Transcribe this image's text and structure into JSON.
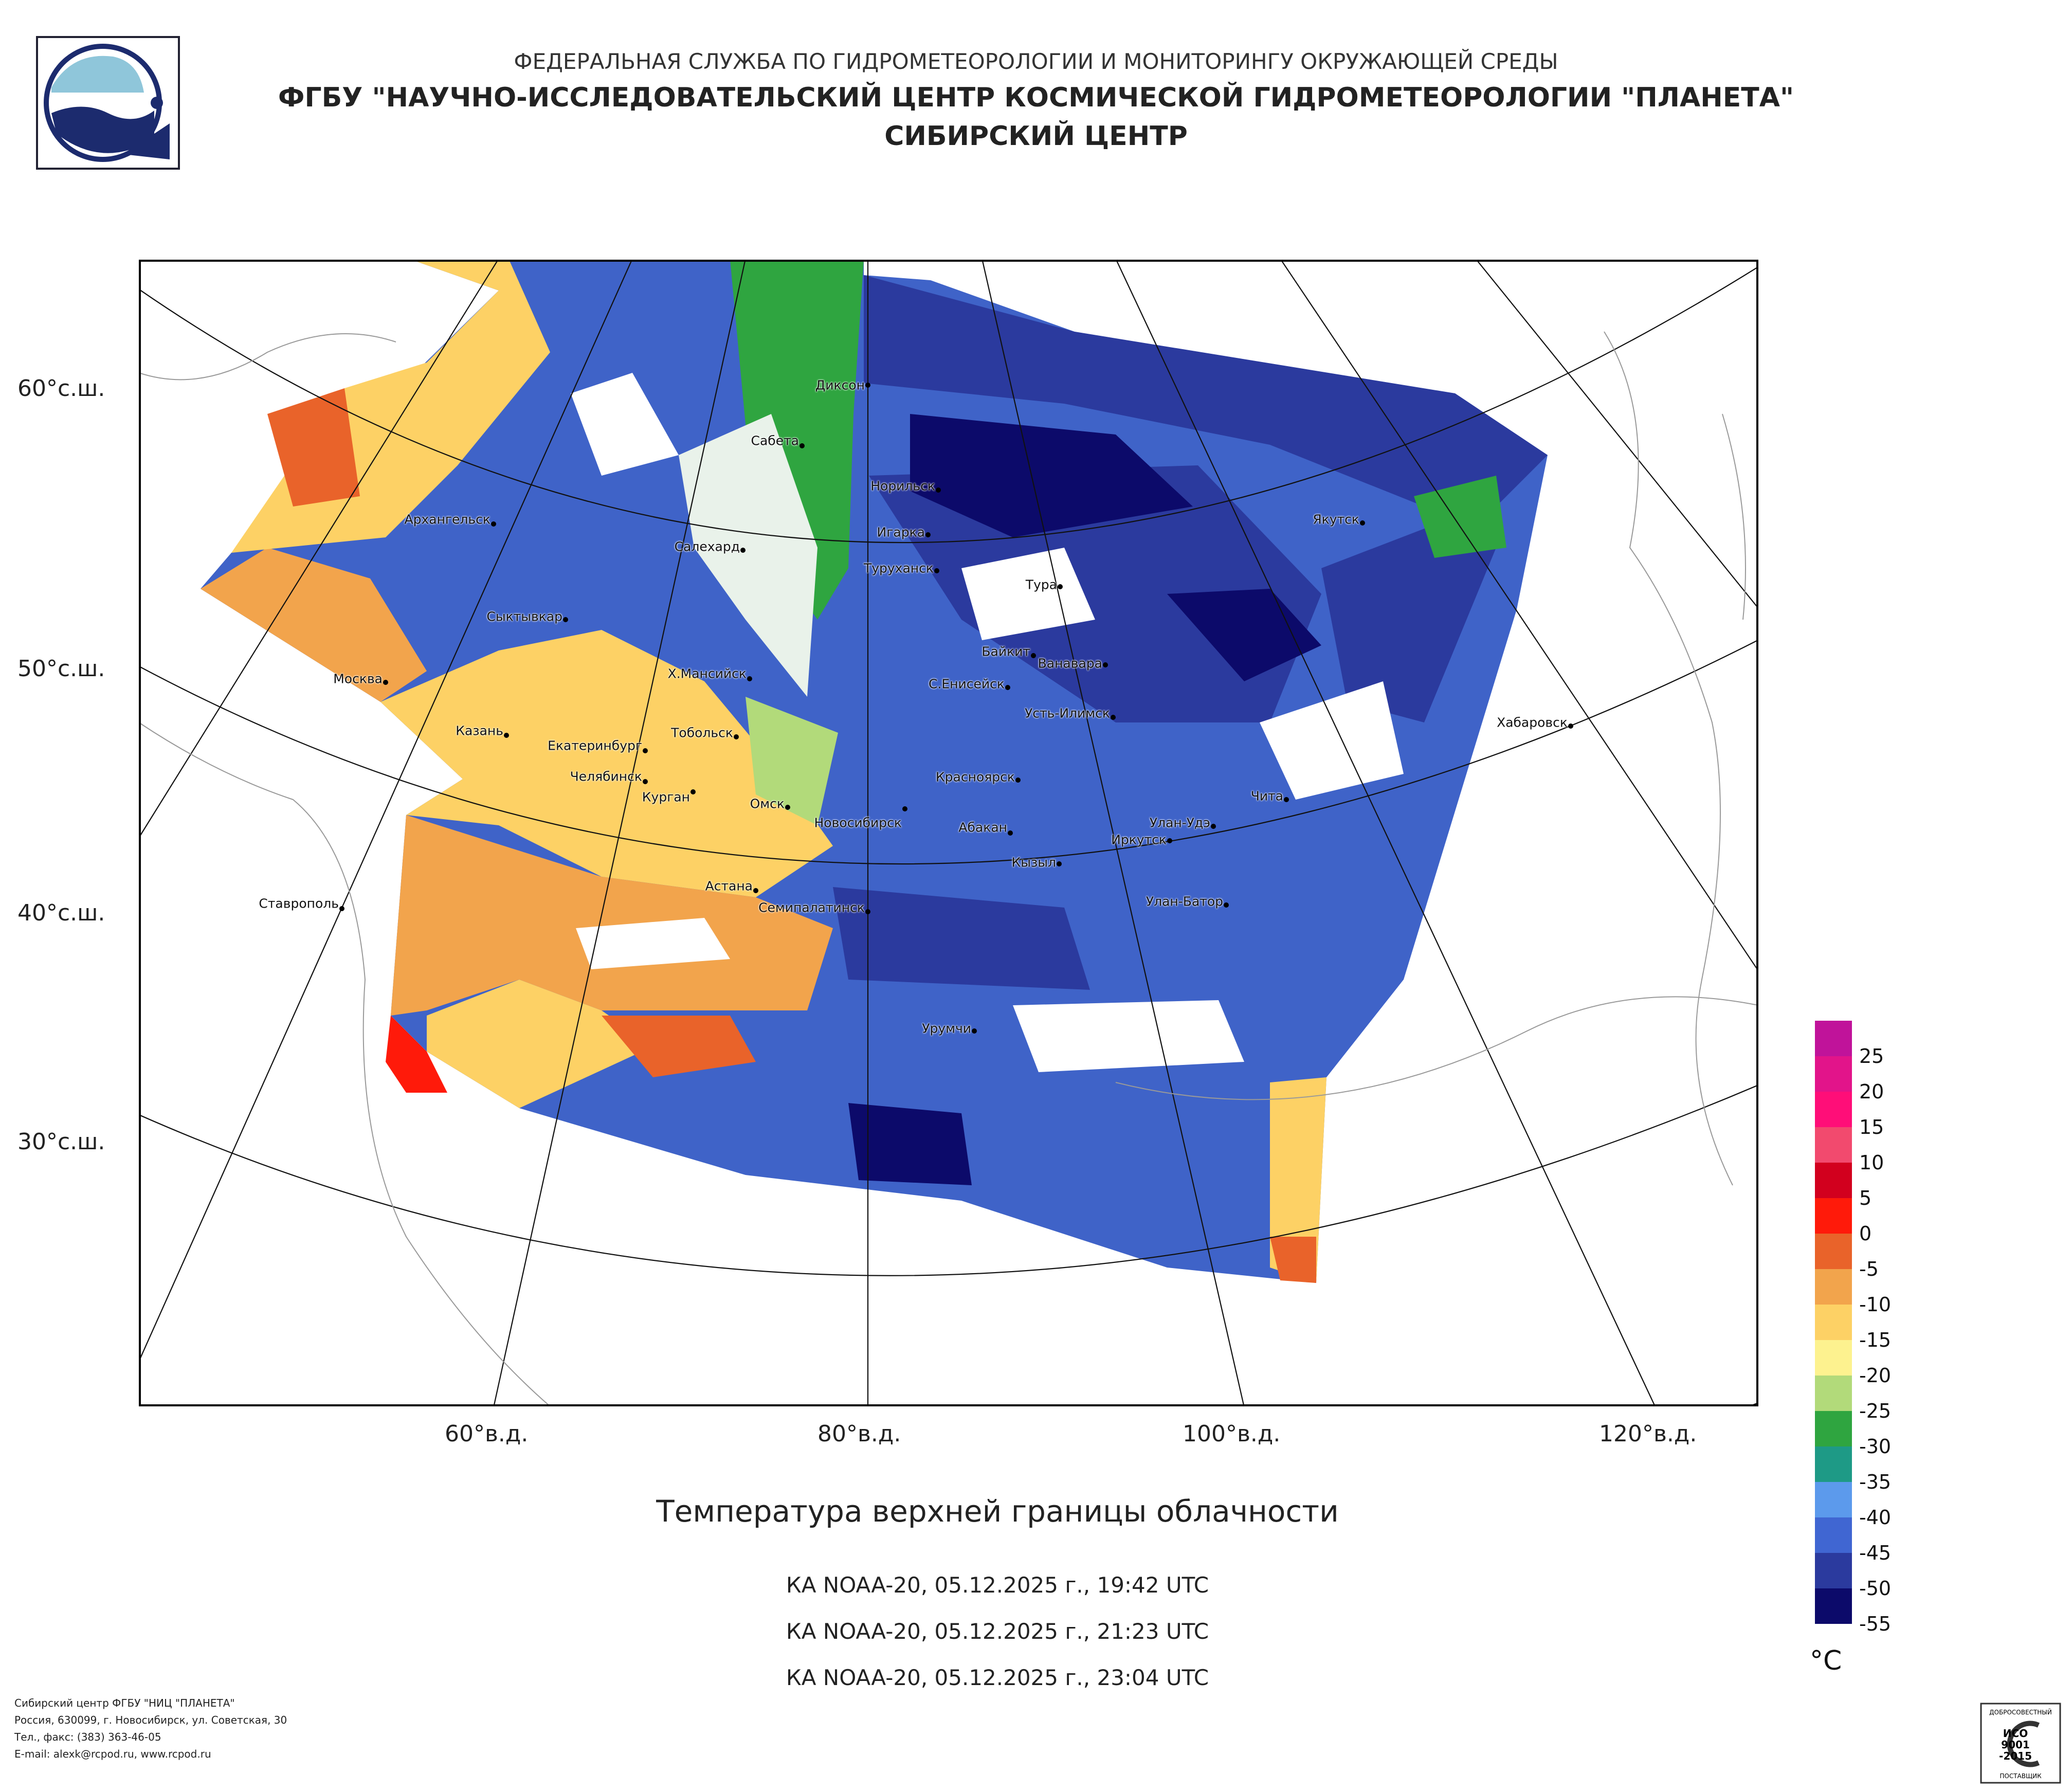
{
  "header": {
    "line1": "ФЕДЕРАЛЬНАЯ СЛУЖБА ПО ГИДРОМЕТЕОРОЛОГИИ И МОНИТОРИНГУ ОКРУЖАЮЩЕЙ СРЕДЫ",
    "line2": "ФГБУ \"НАУЧНО-ИССЛЕДОВАТЕЛЬСКИЙ ЦЕНТР КОСМИЧЕСКОЙ ГИДРОМЕТЕОРОЛОГИИ \"ПЛАНЕТА\"",
    "line3": "СИБИРСКИЙ ЦЕНТР"
  },
  "map": {
    "lat_labels": [
      "60°с.ш.",
      "50°с.ш.",
      "40°с.ш.",
      "30°с.ш."
    ],
    "lon_labels": [
      "60°в.д.",
      "80°в.д.",
      "100°в.д.",
      "120°в.д."
    ],
    "cities": [
      "Диксон",
      "Сабета",
      "Норильск",
      "Игарка",
      "Туруханск",
      "Тура",
      "Якутск",
      "Архангельск",
      "Салехард",
      "Сыктывкар",
      "Байкит",
      "Ванавара",
      "Москва",
      "Х.Мансийск",
      "С.Енисейск",
      "Усть-Илимск",
      "Хабаровск",
      "Казань",
      "Тобольск",
      "Екатеринбург",
      "Челябинск",
      "Курган",
      "Красноярск",
      "Омск",
      "Новосибирск",
      "Чита",
      "Абакан",
      "Улан-Удэ",
      "Иркутск",
      "Кызыл",
      "Ставрополь",
      "Астана",
      "Улан-Батор",
      "Семипалатинск",
      "Урумчи"
    ]
  },
  "title": "Температура верхней границы облачности",
  "passes": [
    "КА NOAA-20, 05.12.2025 г., 19:42 UTC",
    "КА NOAA-20, 05.12.2025 г., 21:23 UTC",
    "КА NOAA-20, 05.12.2025 г., 23:04 UTC"
  ],
  "legend": {
    "unit": "°C",
    "labels": [
      "25",
      "20",
      "15",
      "10",
      "5",
      "0",
      "-5",
      "-10",
      "-15",
      "-20",
      "-25",
      "-30",
      "-35",
      "-40",
      "-45",
      "-50",
      "-55"
    ],
    "colors": [
      "#c0139a",
      "#e2148a",
      "#ff0e78",
      "#f24a6e",
      "#d2001e",
      "#ff1a0a",
      "#e9632a",
      "#f2a44c",
      "#fdd165",
      "#fdf28f",
      "#b2da7a",
      "#2fa540",
      "#1e9a86",
      "#5c9aec",
      "#4066d2",
      "#2b3a9e",
      "#0c0a6a"
    ]
  },
  "footer": [
    "Сибирский центр ФГБУ \"НИЦ \"ПЛАНЕТА\"",
    "Россия, 630099, г. Новосибирск, ул. Советская, 30",
    "Тел., факс: (383) 363-46-05",
    "E-mail: alexk@rcpod.ru, www.rcpod.ru"
  ],
  "iso_badge": [
    "ДОБРОСОВЕСТНЫЙ",
    "ИСО",
    "9001",
    "-2015",
    "ПОСТАВЩИК"
  ]
}
